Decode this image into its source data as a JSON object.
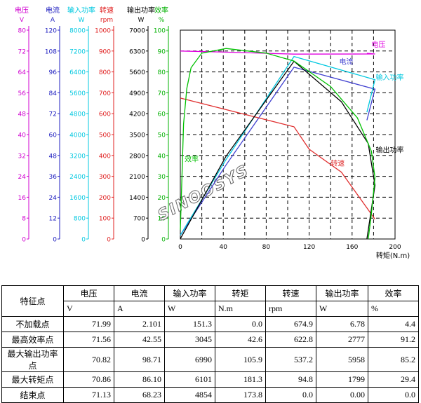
{
  "axes": [
    {
      "name": "voltage",
      "title": "电压",
      "unit": "V",
      "color": "#d000d0",
      "ticks": [
        "0",
        "8",
        "16",
        "24",
        "32",
        "40",
        "48",
        "56",
        "64",
        "72",
        "80"
      ]
    },
    {
      "name": "current",
      "title": "电流",
      "unit": "A",
      "color": "#2020c0",
      "ticks": [
        "0",
        "12",
        "24",
        "36",
        "48",
        "60",
        "72",
        "84",
        "96",
        "108",
        "120"
      ]
    },
    {
      "name": "input-power",
      "title": "输入功率",
      "unit": "W",
      "color": "#00c8e0",
      "ticks": [
        "0",
        "800",
        "1600",
        "2400",
        "3200",
        "4000",
        "4800",
        "5600",
        "6400",
        "7200",
        "8000"
      ]
    },
    {
      "name": "speed",
      "title": "转速",
      "unit": "rpm",
      "color": "#e02020",
      "ticks": [
        "0",
        "100",
        "200",
        "300",
        "400",
        "500",
        "600",
        "700",
        "800",
        "900",
        "1000"
      ]
    },
    {
      "name": "output-power",
      "title": "输出功率",
      "unit": "W",
      "color": "#000000",
      "ticks": [
        "0",
        "700",
        "1400",
        "2100",
        "2800",
        "3500",
        "4200",
        "4900",
        "5600",
        "6300",
        "7000"
      ]
    },
    {
      "name": "efficiency",
      "title": "效率",
      "unit": "%",
      "color": "#00b000",
      "ticks": [
        "0",
        "10",
        "20",
        "30",
        "40",
        "50",
        "60",
        "70",
        "80",
        "90",
        "100"
      ]
    }
  ],
  "watermark": "SINOOSYS",
  "chart_data": {
    "type": "line",
    "x_label": "转矩(N.m)",
    "x_ticks": [
      "0",
      "40",
      "80",
      "120",
      "160",
      "200"
    ],
    "xlim": [
      0,
      200
    ],
    "grid": true,
    "series": [
      {
        "name": "电压",
        "axis": "voltage",
        "color": "#e000e0",
        "label_at": [
          178,
          73.5
        ],
        "x": [
          0,
          42.6,
          105.9,
          181.3,
          173.8
        ],
        "y": [
          71.99,
          71.56,
          70.82,
          70.86,
          71.13
        ]
      },
      {
        "name": "电流",
        "axis": "current",
        "color": "#4040d0",
        "label_at": [
          148,
          100.5
        ],
        "x": [
          0,
          42.6,
          105.9,
          181.3,
          173.8
        ],
        "y": [
          2.101,
          42.55,
          98.71,
          86.1,
          68.23
        ]
      },
      {
        "name": "输入功率",
        "axis": "input-power",
        "color": "#00c8e0",
        "label_at": [
          182,
          6100
        ],
        "x": [
          0,
          42.6,
          105.9,
          181.3,
          173.8
        ],
        "y": [
          151.3,
          3045,
          6990,
          6101,
          4854
        ]
      },
      {
        "name": "转速",
        "axis": "speed",
        "color": "#e03030",
        "label_at": [
          140,
          350
        ],
        "x": [
          0,
          105.9,
          120,
          150,
          181.3
        ],
        "y": [
          674.9,
          537.2,
          430,
          320,
          94.8
        ]
      },
      {
        "name": "输出功率",
        "axis": "output-power",
        "color": "#000000",
        "label_at": [
          182,
          2900
        ],
        "x": [
          0,
          42.6,
          105.9,
          150,
          175,
          181.3,
          173.8
        ],
        "y": [
          6.78,
          2777,
          5958,
          4600,
          3200,
          1799,
          0
        ]
      },
      {
        "name": "效率",
        "axis": "efficiency",
        "color": "#00c000",
        "label_at": [
          4,
          37
        ],
        "x": [
          0,
          3,
          6,
          10,
          20,
          42.6,
          80,
          105.9,
          140,
          165,
          178,
          181.3,
          178,
          175
        ],
        "y": [
          4.4,
          55,
          72,
          82,
          89,
          91.2,
          89,
          85.2,
          73,
          58,
          42,
          29.4,
          12,
          0
        ]
      }
    ]
  },
  "table": {
    "headers": [
      {
        "top": "特征点",
        "bottom": ""
      },
      {
        "top": "电压",
        "bottom": "V"
      },
      {
        "top": "电流",
        "bottom": "A"
      },
      {
        "top": "输入功率",
        "bottom": "W"
      },
      {
        "top": "转矩",
        "bottom": "N.m"
      },
      {
        "top": "转速",
        "bottom": "rpm"
      },
      {
        "top": "输出功率",
        "bottom": "W"
      },
      {
        "top": "效率",
        "bottom": "%"
      }
    ],
    "rows": [
      [
        "不加载点",
        "71.99",
        "2.101",
        "151.3",
        "0.0",
        "674.9",
        "6.78",
        "4.4"
      ],
      [
        "最高效率点",
        "71.56",
        "42.55",
        "3045",
        "42.6",
        "622.8",
        "2777",
        "91.2"
      ],
      [
        "最大输出功率点",
        "70.82",
        "98.71",
        "6990",
        "105.9",
        "537.2",
        "5958",
        "85.2"
      ],
      [
        "最大转矩点",
        "70.86",
        "86.10",
        "6101",
        "181.3",
        "94.8",
        "1799",
        "29.4"
      ],
      [
        "结束点",
        "71.13",
        "68.23",
        "4854",
        "173.8",
        "0.0",
        "0.00",
        "0.0"
      ]
    ]
  }
}
